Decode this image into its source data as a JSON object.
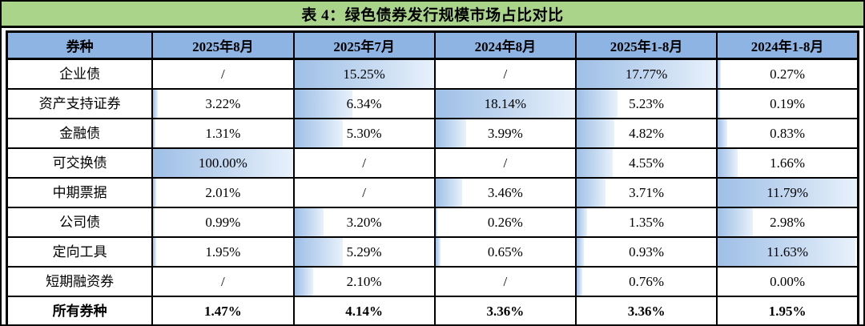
{
  "chart_data": {
    "type": "table",
    "title": "表 4：绿色债券发行规模市场占比对比",
    "columns": [
      "券种",
      "2025年8月",
      "2025年7月",
      "2024年8月",
      "2025年1-8月",
      "2024年1-8月"
    ],
    "column_max": [
      100.0,
      15.25,
      18.14,
      17.77,
      11.79
    ],
    "rows": [
      {
        "label": "企业债",
        "values": [
          "/",
          "15.25%",
          "/",
          "17.77%",
          "0.27%"
        ],
        "is_total": false
      },
      {
        "label": "资产支持证券",
        "values": [
          "3.22%",
          "6.34%",
          "18.14%",
          "5.23%",
          "0.19%"
        ],
        "is_total": false
      },
      {
        "label": "金融债",
        "values": [
          "1.31%",
          "5.30%",
          "3.99%",
          "4.82%",
          "0.83%"
        ],
        "is_total": false
      },
      {
        "label": "可交换债",
        "values": [
          "100.00%",
          "/",
          "/",
          "4.55%",
          "1.66%"
        ],
        "is_total": false
      },
      {
        "label": "中期票据",
        "values": [
          "2.01%",
          "/",
          "3.46%",
          "3.71%",
          "11.79%"
        ],
        "is_total": false
      },
      {
        "label": "公司债",
        "values": [
          "0.99%",
          "3.20%",
          "0.26%",
          "1.35%",
          "2.98%"
        ],
        "is_total": false
      },
      {
        "label": "定向工具",
        "values": [
          "1.95%",
          "5.29%",
          "0.65%",
          "0.93%",
          "11.63%"
        ],
        "is_total": false
      },
      {
        "label": "短期融资券",
        "values": [
          "/",
          "2.10%",
          "/",
          "0.76%",
          "0.00%"
        ],
        "is_total": false
      },
      {
        "label": "所有券种",
        "values": [
          "1.47%",
          "4.14%",
          "3.36%",
          "3.36%",
          "1.95%"
        ],
        "is_total": true
      }
    ],
    "data_bars": {
      "style": "gradient",
      "color_start": "#9fbfe6",
      "color_end": "#e8f1fb",
      "scaling": "per-column-max",
      "note": "bar width = value / column max; no bars on '/' cells, 0.00% cells, or total row"
    },
    "layout": {
      "title_bg": "#aad48a",
      "header_bg": "#8db4e2",
      "border_color": "#000000"
    }
  }
}
